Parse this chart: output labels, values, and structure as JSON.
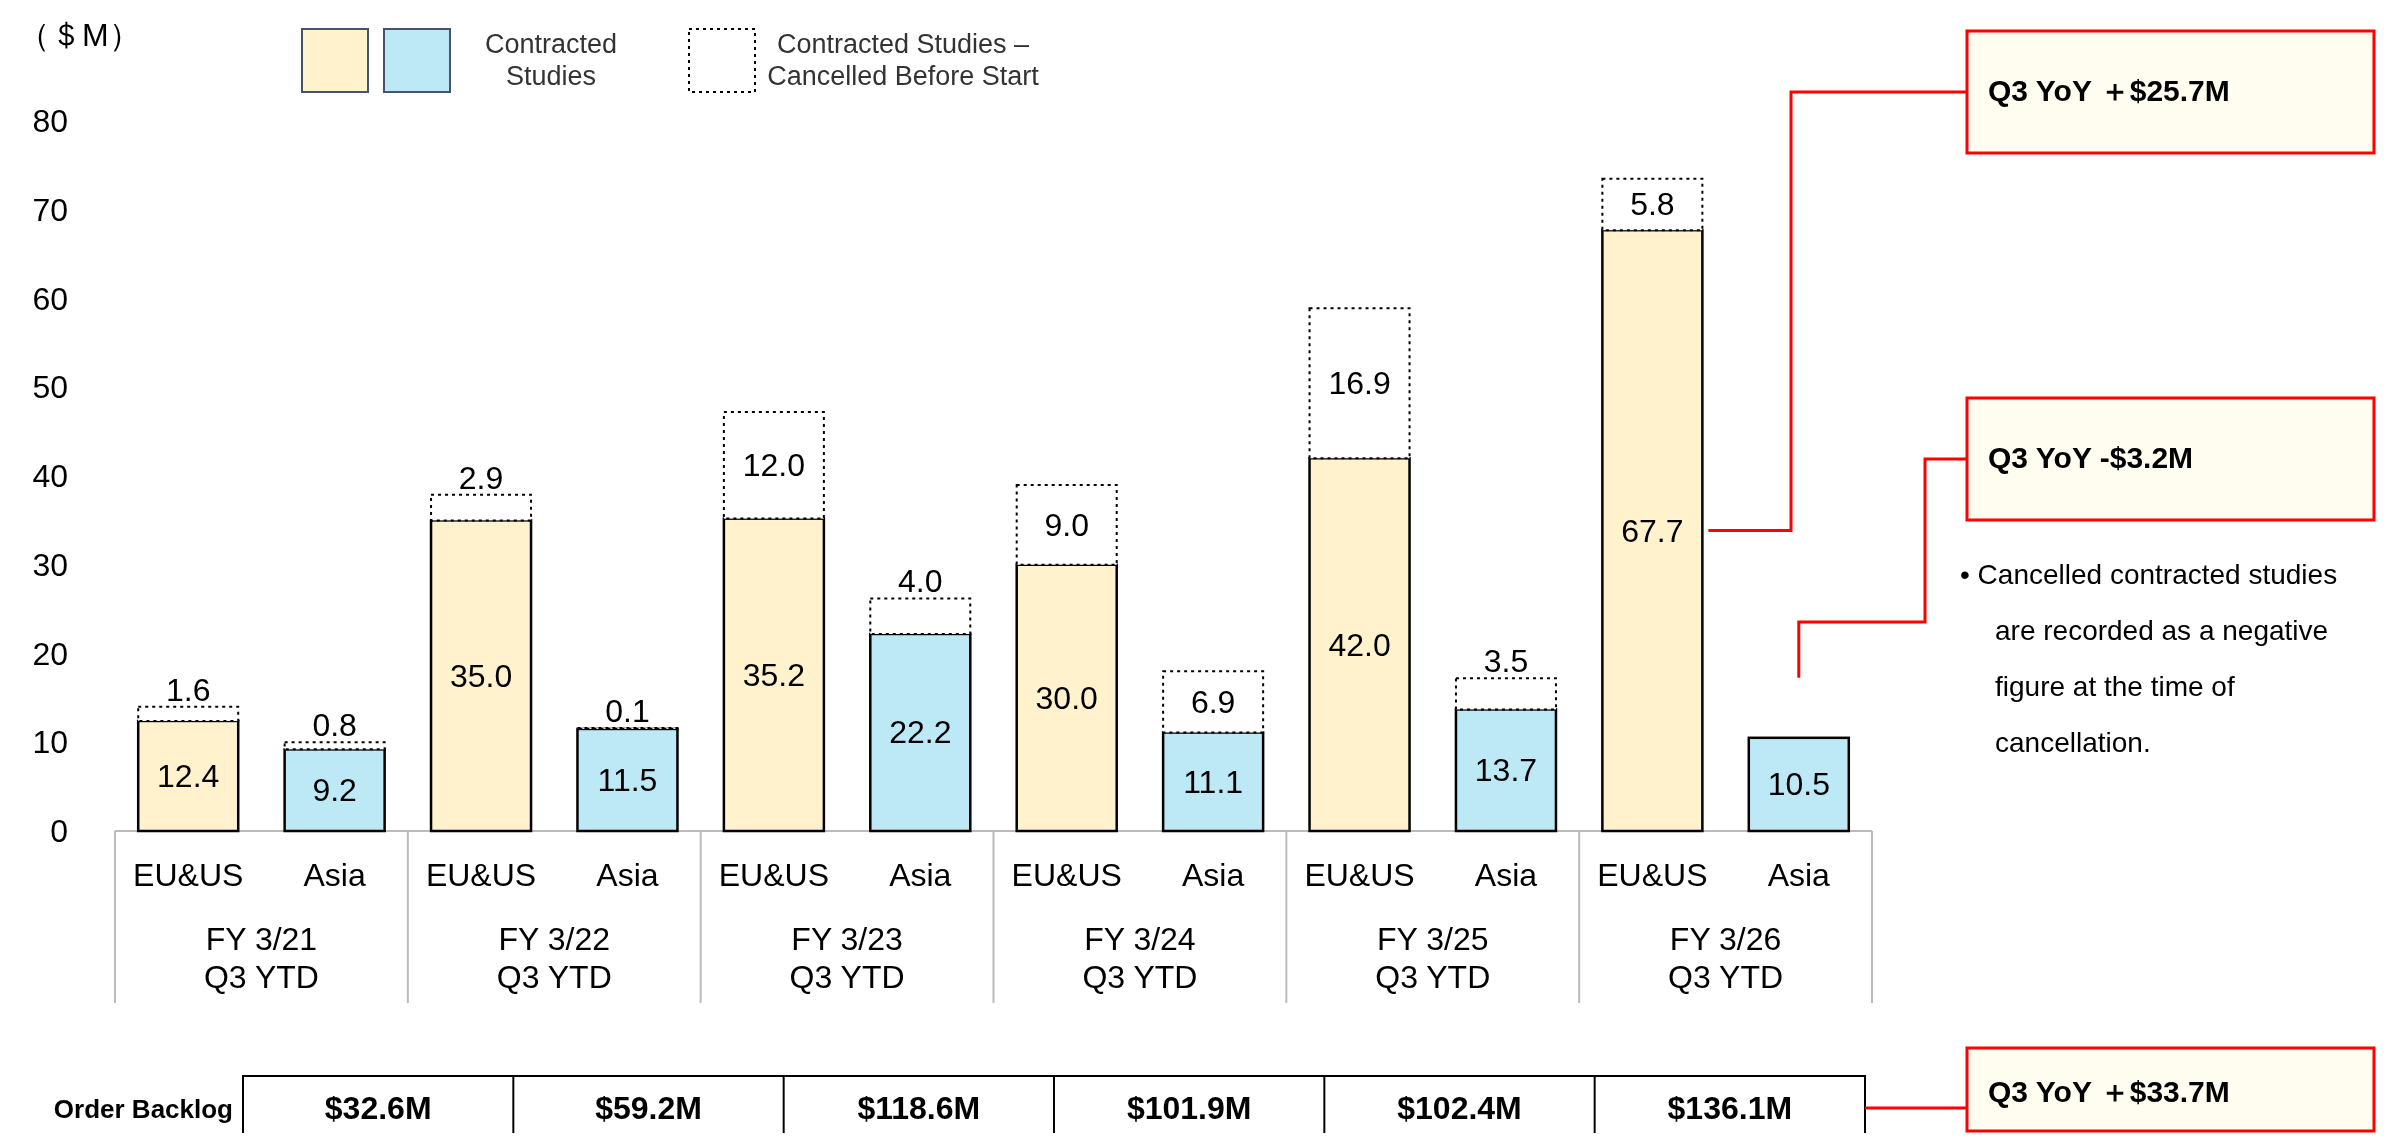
{
  "chart_data": {
    "type": "bar",
    "ylabel": "（＄M）",
    "stacked": true,
    "legend": "top",
    "grid": false,
    "ylim": [
      0,
      80
    ],
    "yticks": [
      0,
      10,
      20,
      30,
      40,
      50,
      60,
      70,
      80
    ],
    "categories": [
      "EU&US",
      "Asia",
      "EU&US",
      "Asia",
      "EU&US",
      "Asia",
      "EU&US",
      "Asia",
      "EU&US",
      "Asia",
      "EU&US",
      "Asia"
    ],
    "series": [
      {
        "name": "Contracted Studies",
        "colors": [
          "#fff2cc",
          "#bde9f6",
          "#fff2cc",
          "#bde9f6",
          "#fff2cc",
          "#bde9f6",
          "#fff2cc",
          "#bde9f6",
          "#fff2cc",
          "#bde9f6",
          "#fff2cc",
          "#bde9f6"
        ],
        "values": [
          12.4,
          9.2,
          35.0,
          11.5,
          35.2,
          22.2,
          30.0,
          11.1,
          42.0,
          13.7,
          67.7,
          10.5
        ],
        "value_labels": [
          "12.4",
          "9.2",
          "35.0",
          "11.5",
          "35.2",
          "22.2",
          "30.0",
          "11.1",
          "42.0",
          "13.7",
          "67.7",
          "10.5"
        ]
      },
      {
        "name": "Contracted Studies – Cancelled Before Start",
        "color": "#ffffff",
        "line_style": "dotted",
        "values": [
          1.6,
          0.8,
          2.9,
          0.1,
          12.0,
          4.0,
          9.0,
          6.9,
          16.9,
          3.5,
          5.8,
          null
        ],
        "value_labels": [
          "1.6",
          "0.8",
          "2.9",
          "0.1",
          "12.0",
          "4.0",
          "9.0",
          "6.9",
          "16.9",
          "3.5",
          "5.8",
          null
        ]
      }
    ],
    "annotations": [
      "FY 3/21\nQ3 YTD",
      "FY 3/22\nQ3 YTD",
      "FY 3/23\nQ3 YTD",
      "FY 3/24\nQ3 YTD",
      "FY 3/25\nQ3 YTD",
      "FY 3/26\nQ3 YTD",
      "Order Backlog",
      "$32.6M",
      "$59.2M",
      "$118.6M",
      "$101.9M",
      "$102.4M",
      "$136.1M",
      "Q3 YoY ＋$25.7M",
      "Q3 YoY -$3.2M",
      "Q3 YoY ＋$33.7M",
      "• Cancelled contracted studies\nare recorded as a negative\nfigure at the time of\ncancellation."
    ]
  }
}
